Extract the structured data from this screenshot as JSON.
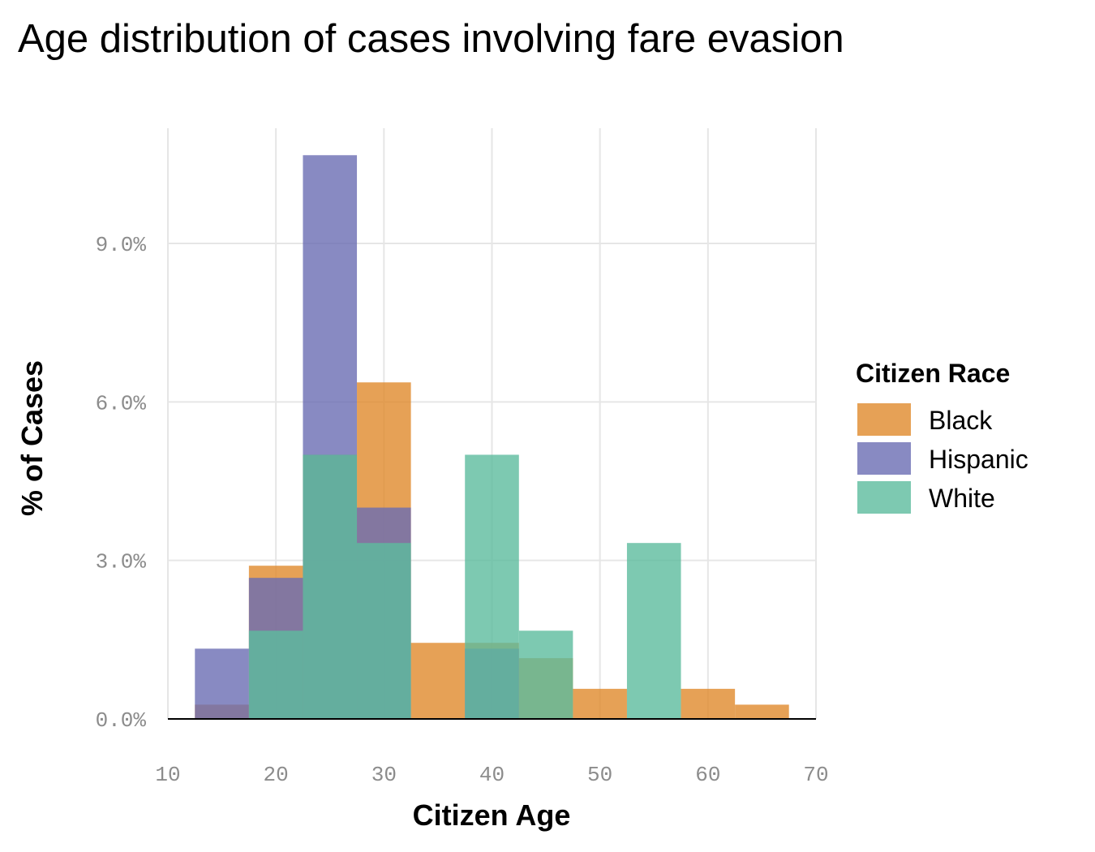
{
  "chart_data": {
    "type": "histogram",
    "title": "Age distribution of cases involving fare evasion",
    "xlabel": "Citizen Age",
    "ylabel": "% of Cases",
    "xlim": [
      10,
      70
    ],
    "ylim": [
      0,
      10.8
    ],
    "x_ticks": [
      10,
      20,
      30,
      40,
      50,
      60,
      70
    ],
    "x_tick_labels": [
      "10",
      "20",
      "30",
      "40",
      "50",
      "60",
      "70"
    ],
    "y_ticks": [
      0,
      3,
      6,
      9
    ],
    "y_tick_labels": [
      "0.0%",
      "3.0%",
      "6.0%",
      "9.0%"
    ],
    "grid": true,
    "legend": {
      "title": "Citizen Race",
      "position": "right"
    },
    "bin_edges": [
      12.5,
      17.5,
      22.5,
      27.5,
      32.5,
      37.5,
      42.5,
      47.5,
      52.5,
      57.5,
      62.5,
      67.5
    ],
    "series": [
      {
        "name": "Black",
        "color": "#e08a2c",
        "values": [
          0.27,
          2.9,
          5.0,
          6.37,
          1.44,
          1.44,
          1.15,
          0.57,
          0.0,
          0.57,
          0.27
        ]
      },
      {
        "name": "Hispanic",
        "color": "#6a6db3",
        "values": [
          1.33,
          2.67,
          10.67,
          4.0,
          0.0,
          1.33,
          0.0,
          0.0,
          0.0,
          0.0,
          0.0
        ]
      },
      {
        "name": "White",
        "color": "#5cbc9d",
        "values": [
          0.0,
          1.67,
          5.0,
          3.33,
          0.0,
          5.0,
          1.67,
          0.0,
          3.33,
          0.0,
          0.0
        ]
      }
    ]
  }
}
